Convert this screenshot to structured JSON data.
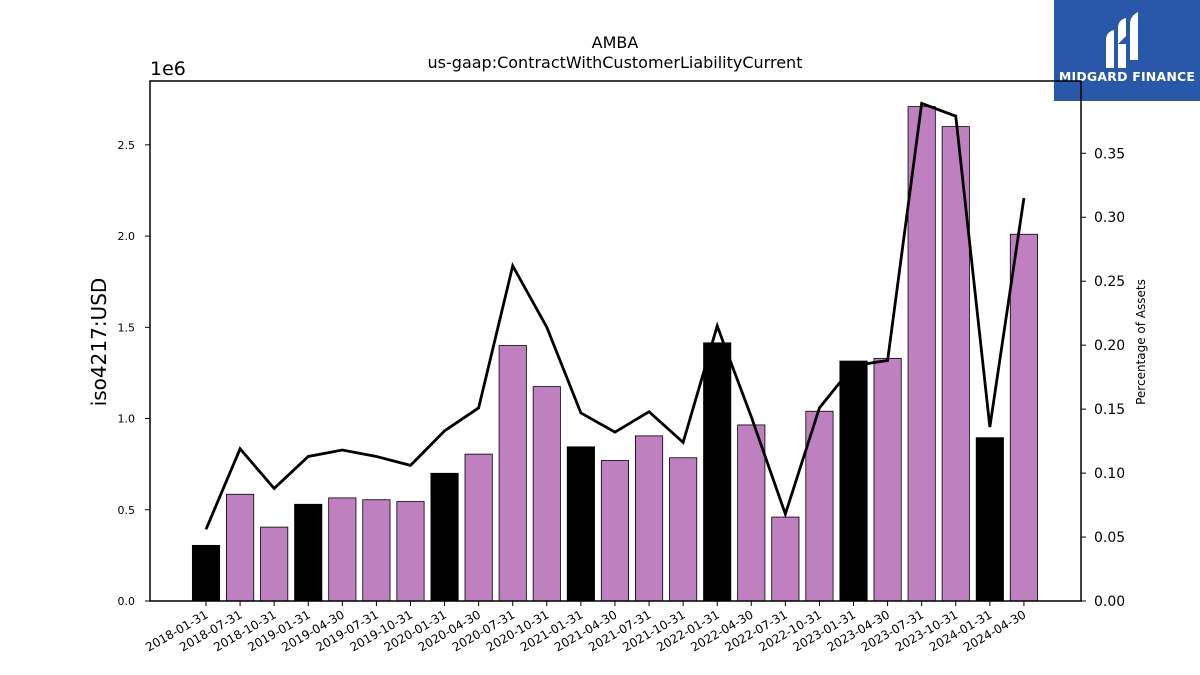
{
  "logo": {
    "text": "MIDGARD FINANCE",
    "icon": "midgard-m-icon",
    "background": "#2a58a8"
  },
  "chart_data": {
    "type": "bar",
    "title": "AMBA",
    "subtitle": "us-gaap:ContractWithCustomerLiabilityCurrent",
    "ylabel": "iso4217:USD",
    "y2label": "Percentage of Assets",
    "offset_text": "1e6",
    "ylim": [
      0,
      2850000
    ],
    "y2lim": [
      0,
      0.4065
    ],
    "yticks": [
      "0.0",
      "0.5",
      "1.0",
      "1.5",
      "2.0",
      "2.5"
    ],
    "y2ticks": [
      "0.00",
      "0.05",
      "0.10",
      "0.15",
      "0.20",
      "0.25",
      "0.30",
      "0.35"
    ],
    "categories": [
      "2018-01-31",
      "2018-07-31",
      "2018-10-31",
      "2019-01-31",
      "2019-04-30",
      "2019-07-31",
      "2019-10-31",
      "2020-01-31",
      "2020-04-30",
      "2020-07-31",
      "2020-10-31",
      "2021-01-31",
      "2021-04-30",
      "2021-07-31",
      "2021-10-31",
      "2022-01-31",
      "2022-04-30",
      "2022-07-31",
      "2022-10-31",
      "2023-01-31",
      "2023-04-30",
      "2023-07-31",
      "2023-10-31",
      "2024-01-31",
      "2024-04-30"
    ],
    "series": [
      {
        "type": "bar",
        "values": [
          305000,
          585000,
          405000,
          530000,
          565000,
          555000,
          545000,
          700000,
          805000,
          1400000,
          1175000,
          845000,
          770000,
          905000,
          785000,
          1415000,
          965000,
          460000,
          1040000,
          1315000,
          1330000,
          2710000,
          2600000,
          895000,
          2010000
        ],
        "colors": [
          "#000000",
          "#bf80bf",
          "#bf80bf",
          "#000000",
          "#bf80bf",
          "#bf80bf",
          "#bf80bf",
          "#000000",
          "#bf80bf",
          "#bf80bf",
          "#bf80bf",
          "#000000",
          "#bf80bf",
          "#bf80bf",
          "#bf80bf",
          "#000000",
          "#bf80bf",
          "#bf80bf",
          "#bf80bf",
          "#000000",
          "#bf80bf",
          "#bf80bf",
          "#bf80bf",
          "#000000",
          "#bf80bf"
        ]
      },
      {
        "type": "line",
        "axis": "right",
        "color": "#000000",
        "values": [
          0.056,
          0.119,
          0.088,
          0.113,
          0.118,
          0.113,
          0.106,
          0.133,
          0.151,
          0.262,
          0.214,
          0.147,
          0.132,
          0.148,
          0.124,
          0.215,
          0.144,
          0.068,
          0.151,
          0.184,
          0.188,
          0.389,
          0.379,
          0.136,
          0.315
        ]
      }
    ],
    "grid": false,
    "legend": "none"
  }
}
